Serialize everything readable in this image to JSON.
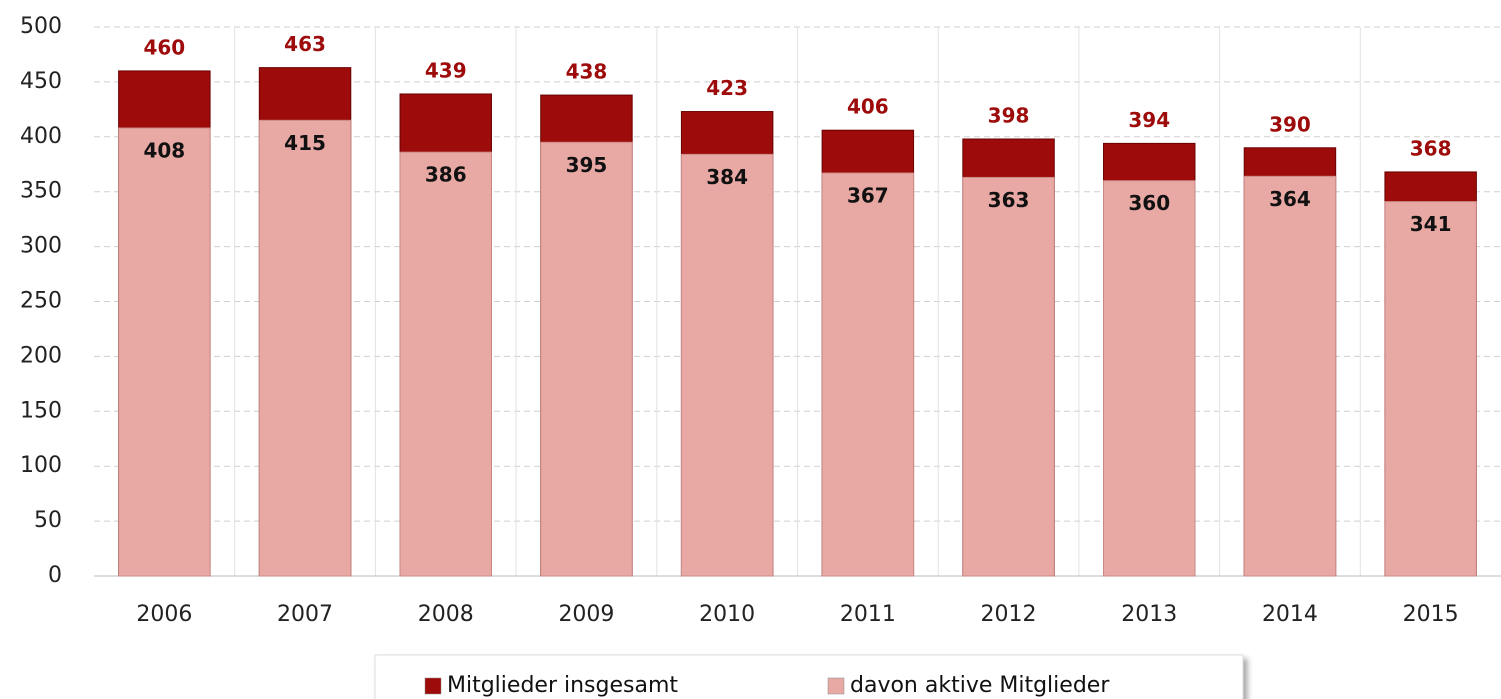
{
  "chart_data": {
    "type": "bar",
    "overlap": true,
    "categories": [
      "2006",
      "2007",
      "2008",
      "2009",
      "2010",
      "2011",
      "2012",
      "2013",
      "2014",
      "2015"
    ],
    "series": [
      {
        "name": "Mitglieder insgesamt",
        "color": "#9e0b0b",
        "values": [
          460,
          463,
          439,
          438,
          423,
          406,
          398,
          394,
          390,
          368
        ]
      },
      {
        "name": "davon aktive Mitglieder",
        "color": "#e8a9a5",
        "values": [
          408,
          415,
          386,
          395,
          384,
          367,
          363,
          360,
          364,
          341
        ]
      }
    ],
    "ylim": [
      0,
      500
    ],
    "yticks": [
      0,
      50,
      100,
      150,
      200,
      250,
      300,
      350,
      400,
      450,
      500
    ],
    "grid": true,
    "legend": "bottom"
  }
}
